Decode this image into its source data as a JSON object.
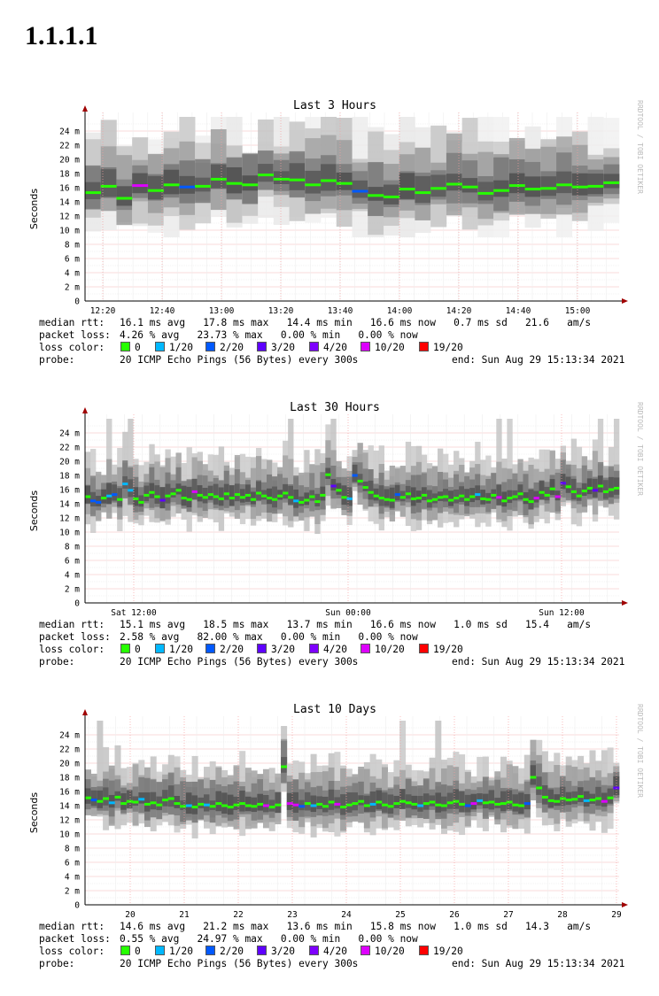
{
  "page": {
    "title": "1.1.1.1"
  },
  "colors": {
    "loss": {
      "0": "#26ff00",
      "1/20": "#00b8ff",
      "2/20": "#0059ff",
      "3/20": "#5e00ff",
      "4/20": "#7e00ff",
      "10/20": "#dd00ff",
      "19/20": "#ff0000"
    }
  },
  "watermark": "RRDTOOL / TOBI OETIKER",
  "chart_data": [
    {
      "type": "line",
      "title": "Last 3 Hours",
      "ylabel": "Seconds",
      "ylim": [
        0,
        26
      ],
      "yticks": [
        "0",
        "2 m",
        "4 m",
        "6 m",
        "8 m",
        "10 m",
        "12 m",
        "14 m",
        "16 m",
        "18 m",
        "20 m",
        "22 m",
        "24 m"
      ],
      "xticks": [
        "12:20",
        "12:40",
        "13:00",
        "13:20",
        "13:40",
        "14:00",
        "14:20",
        "14:40",
        "15:00"
      ],
      "series": [
        {
          "values": [
            15.3,
            16.2,
            14.5,
            16.3,
            15.6,
            16.4,
            16.1,
            16.2,
            17.2,
            16.6,
            16.4,
            17.8,
            17.2,
            17.1,
            16.4,
            17.0,
            16.6,
            15.5,
            14.9,
            14.7,
            15.8,
            15.3,
            15.9,
            16.5,
            16.1,
            15.2,
            15.6,
            16.3,
            15.8,
            15.9,
            16.4,
            16.1,
            16.2,
            16.7
          ]
        }
      ]
    },
    {
      "type": "line",
      "title": "Last 30 Hours",
      "ylabel": "Seconds",
      "ylim": [
        0,
        26
      ],
      "yticks": [
        "0",
        "2 m",
        "4 m",
        "6 m",
        "8 m",
        "10 m",
        "12 m",
        "14 m",
        "16 m",
        "18 m",
        "20 m",
        "22 m",
        "24 m"
      ],
      "xticks": [
        "Sat 12:00",
        "Sun 00:00",
        "Sun 12:00"
      ],
      "series": [
        {
          "values": [
            15.0,
            14.4,
            14.2,
            14.8,
            15.1,
            15.3,
            14.6,
            16.8,
            15.9,
            14.7,
            14.2,
            15.2,
            15.6,
            15.0,
            14.5,
            15.1,
            15.4,
            15.9,
            14.8,
            14.6,
            15.7,
            15.2,
            14.9,
            15.3,
            15.0,
            14.7,
            15.4,
            14.8,
            15.3,
            14.9,
            15.2,
            14.6,
            15.5,
            15.1,
            14.8,
            14.6,
            15.1,
            15.5,
            14.9,
            14.4,
            14.2,
            14.5,
            15.0,
            14.3,
            15.2,
            18.1,
            16.5,
            15.9,
            14.9,
            14.7,
            18.0,
            17.2,
            16.3,
            15.6,
            15.1,
            14.8,
            14.6,
            14.5,
            15.3,
            14.9,
            15.4,
            14.7,
            14.8,
            15.2,
            14.4,
            14.6,
            14.9,
            15.0,
            14.5,
            14.8,
            15.1,
            14.6,
            15.0,
            15.3,
            14.7,
            14.6,
            15.2,
            14.9,
            14.4,
            14.8,
            15.0,
            15.4,
            14.6,
            14.3,
            14.8,
            15.6,
            15.2,
            16.1,
            15.0,
            16.9,
            16.4,
            15.7,
            15.1,
            15.8,
            16.2,
            15.9,
            16.5,
            15.7,
            16.0,
            16.2
          ]
        }
      ]
    },
    {
      "type": "line",
      "title": "Last 10 Days",
      "ylabel": "Seconds",
      "ylim": [
        0,
        26
      ],
      "yticks": [
        "0",
        "2 m",
        "4 m",
        "6 m",
        "8 m",
        "10 m",
        "12 m",
        "14 m",
        "16 m",
        "18 m",
        "20 m",
        "22 m",
        "24 m"
      ],
      "xticks": [
        "20",
        "21",
        "22",
        "23",
        "24",
        "25",
        "26",
        "27",
        "28",
        "29"
      ],
      "series": [
        {
          "values": [
            15.1,
            14.8,
            14.6,
            15.0,
            14.4,
            15.2,
            14.3,
            14.6,
            14.5,
            14.9,
            14.2,
            14.4,
            14.1,
            14.8,
            15.0,
            14.3,
            13.9,
            14.0,
            13.8,
            14.2,
            14.1,
            13.9,
            14.3,
            14.0,
            13.8,
            14.1,
            14.3,
            14.0,
            13.9,
            14.2,
            14.0,
            13.8,
            14.1,
            19.5,
            14.3,
            14.1,
            13.9,
            14.3,
            14.0,
            14.2,
            13.9,
            14.5,
            14.2,
            13.8,
            14.1,
            14.3,
            14.6,
            14.0,
            14.2,
            14.5,
            14.1,
            13.9,
            14.3,
            14.6,
            14.4,
            14.2,
            14.0,
            14.3,
            14.5,
            14.1,
            14.0,
            14.4,
            14.6,
            14.2,
            14.0,
            14.3,
            14.7,
            14.4,
            14.5,
            14.2,
            14.3,
            14.5,
            14.1,
            14.0,
            14.3,
            18.0,
            16.5,
            15.2,
            14.7,
            14.6,
            15.0,
            14.8,
            14.9,
            15.3,
            14.7,
            14.8,
            15.0,
            14.6,
            15.1,
            16.5
          ]
        }
      ]
    }
  ],
  "graphs": [
    {
      "stats": {
        "median_label": "median rtt:",
        "median": "16.1 ms avg   17.8 ms max   14.4 ms min   16.6 ms now   0.7 ms sd   21.6   am/s",
        "loss_label": "packet loss:",
        "loss": "4.26 % avg   23.73 % max   0.00 % min   0.00 % now",
        "color_label": "loss color:",
        "probe_label": "probe:",
        "probe": "20 ICMP Echo Pings (56 Bytes) every 300s",
        "end": "end: Sun Aug 29 15:13:34 2021"
      }
    },
    {
      "stats": {
        "median_label": "median rtt:",
        "median": "15.1 ms avg   18.5 ms max   13.7 ms min   16.6 ms now   1.0 ms sd   15.4   am/s",
        "loss_label": "packet loss:",
        "loss": "2.58 % avg   82.00 % max   0.00 % min   0.00 % now",
        "color_label": "loss color:",
        "probe_label": "probe:",
        "probe": "20 ICMP Echo Pings (56 Bytes) every 300s",
        "end": "end: Sun Aug 29 15:13:34 2021"
      }
    },
    {
      "stats": {
        "median_label": "median rtt:",
        "median": "14.6 ms avg   21.2 ms max   13.6 ms min   15.8 ms now   1.0 ms sd   14.3   am/s",
        "loss_label": "packet loss:",
        "loss": "0.55 % avg   24.97 % max   0.00 % min   0.00 % now",
        "color_label": "loss color:",
        "probe_label": "probe:",
        "probe": "20 ICMP Echo Pings (56 Bytes) every 300s",
        "end": "end: Sun Aug 29 15:13:34 2021"
      }
    }
  ],
  "legend": [
    {
      "label": "0",
      "color": "#26ff00"
    },
    {
      "label": "1/20",
      "color": "#00b8ff"
    },
    {
      "label": "2/20",
      "color": "#0059ff"
    },
    {
      "label": "3/20",
      "color": "#5e00ff"
    },
    {
      "label": "4/20",
      "color": "#7e00ff"
    },
    {
      "label": "10/20",
      "color": "#dd00ff"
    },
    {
      "label": "19/20",
      "color": "#ff0000"
    }
  ]
}
